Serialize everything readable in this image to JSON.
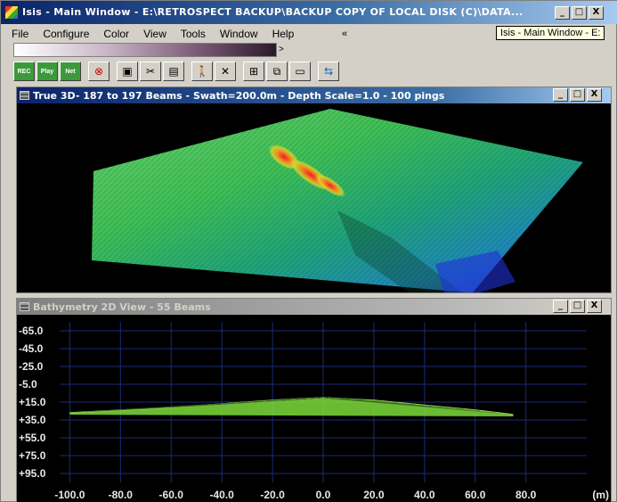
{
  "main_window": {
    "title": "Isis - Main Window - E:\\RETROSPECT BACKUP\\BACKUP COPY OF LOCAL DISK (C)\\DATA...",
    "buttons": {
      "minimize": "_",
      "maximize": "□",
      "close": "X"
    }
  },
  "tooltip": "Isis - Main Window - E:",
  "menu": {
    "items": [
      "File",
      "Configure",
      "Color",
      "View",
      "Tools",
      "Window",
      "Help"
    ],
    "overflow": "«"
  },
  "palette": {
    "arrow": ">"
  },
  "toolbar": {
    "buttons": [
      {
        "name": "rec-button",
        "label": "REC"
      },
      {
        "name": "play-button",
        "label": "Play"
      },
      {
        "name": "net-button",
        "label": "Net"
      },
      {
        "name": "stop-button",
        "label": "⊗"
      },
      {
        "name": "save-button",
        "label": "▣"
      },
      {
        "name": "cut-button",
        "label": "✂"
      },
      {
        "name": "print-button",
        "label": "▤"
      },
      {
        "name": "person-button",
        "label": "🚶"
      },
      {
        "name": "tools-button",
        "label": "✕"
      },
      {
        "name": "tile-button",
        "label": "⊞"
      },
      {
        "name": "cascade-button",
        "label": "⧉"
      },
      {
        "name": "window-button",
        "label": "▭"
      },
      {
        "name": "connect-button",
        "label": "⇆"
      }
    ]
  },
  "view3d": {
    "title": "True 3D- 187 to 197 Beams - Swath=200.0m - Depth Scale=1.0 - 100 pings",
    "buttons": {
      "minimize": "_",
      "maximize": "□",
      "close": "X"
    }
  },
  "view2d": {
    "title": "Bathymetry 2D View - 55 Beams",
    "buttons": {
      "minimize": "_",
      "maximize": "□",
      "close": "X"
    }
  },
  "chart_data": {
    "type": "line",
    "y_tick_labels": [
      "-65.0",
      "-45.0",
      "-25.0",
      "-5.0",
      "+15.0",
      "+35.0",
      "+55.0",
      "+75.0",
      "+95.0"
    ],
    "y_ticks": [
      -65,
      -45,
      -25,
      -5,
      15,
      35,
      55,
      75,
      95
    ],
    "x_tick_labels": [
      "-100.0",
      "-80.0",
      "-60.0",
      "-40.0",
      "-20.0",
      "0.0",
      "20.0",
      "40.0",
      "60.0",
      "80.0"
    ],
    "x_ticks": [
      -100,
      -80,
      -60,
      -40,
      -20,
      0,
      20,
      40,
      60,
      80
    ],
    "x_unit": "(m)",
    "xlim": [
      -104,
      104
    ],
    "ylim": [
      -75,
      105
    ],
    "grid": true,
    "series": [
      {
        "color": "#7ddc3a",
        "x": [
          -100,
          -60,
          -20,
          0,
          20,
          60,
          75
        ],
        "y": [
          27,
          21,
          13,
          10,
          13,
          24,
          29
        ]
      }
    ]
  }
}
